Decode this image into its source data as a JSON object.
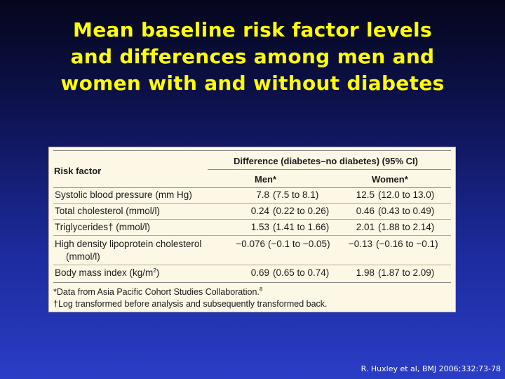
{
  "title": {
    "lines": [
      "Mean baseline risk factor levels",
      "and differences among men and",
      "women with and without diabetes"
    ]
  },
  "table": {
    "row_header": "Risk factor",
    "group_header": "Difference (diabetes–no diabetes) (95% CI)",
    "columns": [
      "Men*",
      "Women*"
    ],
    "rows": [
      {
        "label": "Systolic blood pressure (mm Hg)",
        "men_value": "7.8",
        "men_ci": "(7.5 to 8.1)",
        "women_value": "12.5",
        "women_ci": "(12.0 to 13.0)"
      },
      {
        "label": "Total cholesterol (mmol/l)",
        "men_value": "0.24",
        "men_ci": "(0.22 to 0.26)",
        "women_value": "0.46",
        "women_ci": "(0.43 to 0.49)"
      },
      {
        "label": "Triglycerides† (mmol/l)",
        "men_value": "1.53",
        "men_ci": "(1.41 to 1.66)",
        "women_value": "2.01",
        "women_ci": "(1.88 to 2.14)"
      },
      {
        "label": "High density lipoprotein cholesterol",
        "label_line2": "(mmol/l)",
        "men_value": "−0.076",
        "men_ci": "(−0.1 to −0.05)",
        "women_value": "−0.13",
        "women_ci": "(−0.16 to −0.1)"
      },
      {
        "label": "Body mass index (kg/m",
        "label_sup": "2",
        "label_end": ")",
        "men_value": "0.69",
        "men_ci": "(0.65 to 0.74)",
        "women_value": "1.98",
        "women_ci": "(1.87 to 2.09)"
      }
    ],
    "footnotes": [
      {
        "text": "*Data from Asia Pacific Cohort Studies Collaboration.",
        "sup": "8"
      },
      {
        "text": "†Log transformed before analysis and subsequently transformed back."
      }
    ]
  },
  "citation": "R. Huxley et al, BMJ  2006;332:73-78"
}
